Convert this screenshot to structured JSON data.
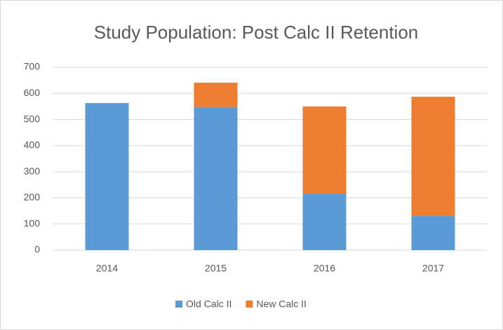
{
  "chart_data": {
    "type": "stacked_bar",
    "title": "Study Population: Post Calc II Retention",
    "categories": [
      "2014",
      "2015",
      "2016",
      "2017"
    ],
    "series": [
      {
        "name": "Old Calc II",
        "color": "#5b9bd5",
        "values": [
          563,
          548,
          217,
          131
        ]
      },
      {
        "name": "New Calc II",
        "color": "#ed7d31",
        "values": [
          0,
          93,
          333,
          456
        ]
      }
    ],
    "ylim": [
      0,
      700
    ],
    "yticks": [
      0,
      100,
      200,
      300,
      400,
      500,
      600,
      700
    ],
    "grid": true,
    "legend": "bottom"
  }
}
